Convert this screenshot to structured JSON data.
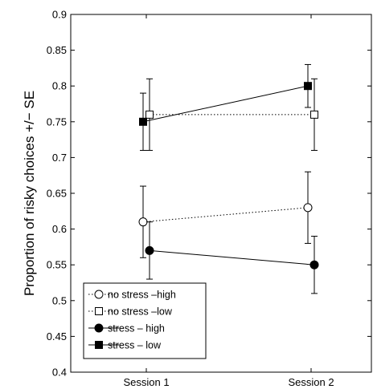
{
  "chart_data": {
    "type": "line",
    "ylabel": "Proportion of risky choices +/− SE",
    "xlabel": "",
    "categories": [
      "Session 1",
      "Session 2"
    ],
    "ylim": [
      0.4,
      0.9
    ],
    "yticks": [
      "0.4",
      "0.45",
      "0.5",
      "0.55",
      "0.6",
      "0.65",
      "0.7",
      "0.75",
      "0.8",
      "0.85",
      "0.9"
    ],
    "grid": false,
    "legend_position": "bottom-left",
    "series": [
      {
        "name": "no stress –high",
        "marker": "circle-open",
        "line": "dotted",
        "values": [
          0.61,
          0.63
        ],
        "se": [
          0.05,
          0.05
        ]
      },
      {
        "name": "no stress –low",
        "marker": "square-open",
        "line": "dotted",
        "values": [
          0.76,
          0.76
        ],
        "se": [
          0.05,
          0.05
        ]
      },
      {
        "name": "stress – high",
        "marker": "circle-filled",
        "line": "solid",
        "values": [
          0.57,
          0.55
        ],
        "se": [
          0.04,
          0.04
        ]
      },
      {
        "name": "stress – low",
        "marker": "square-filled",
        "line": "solid",
        "values": [
          0.75,
          0.8
        ],
        "se": [
          0.04,
          0.03
        ]
      }
    ]
  }
}
